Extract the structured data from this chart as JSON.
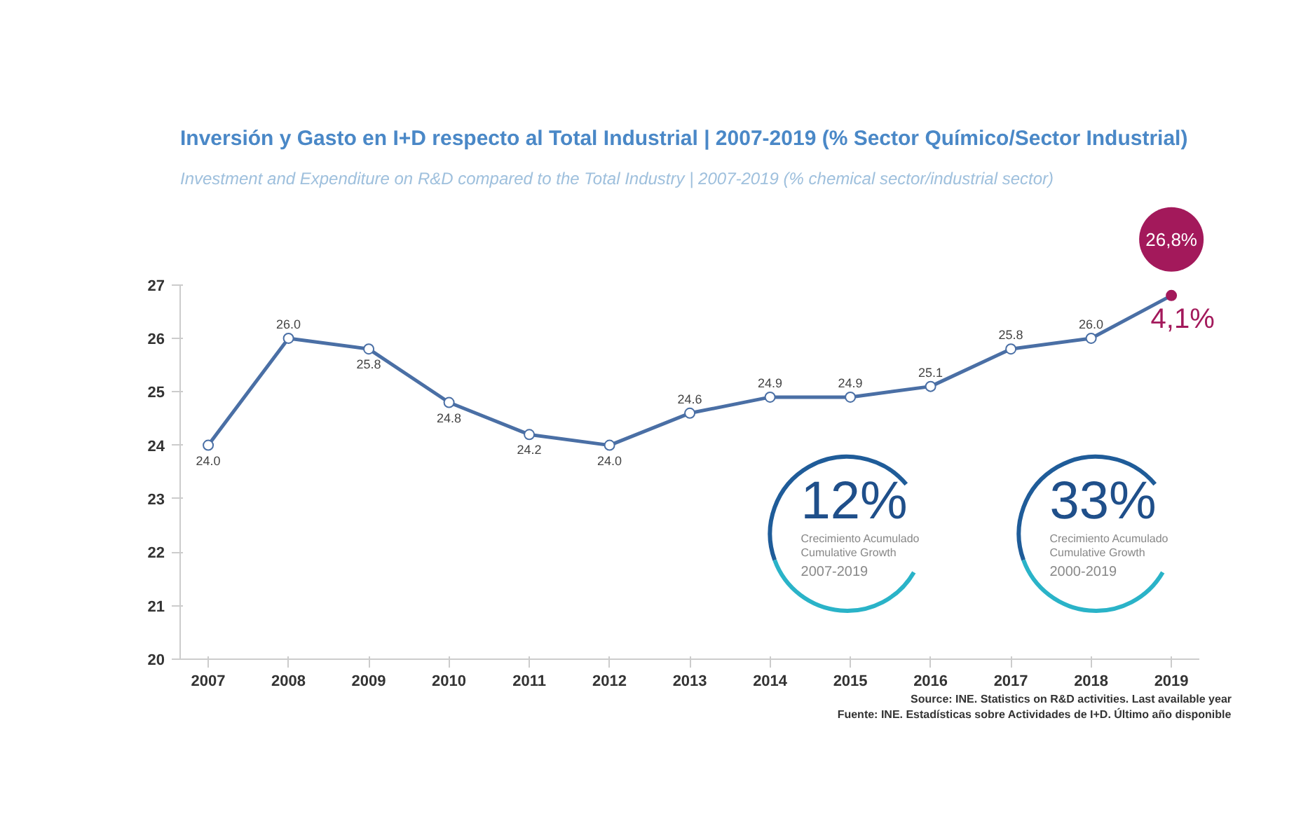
{
  "chart_data": {
    "type": "line",
    "title": "Inversión y Gasto en I+D respecto al Total Industrial | 2007-2019 (% Sector Químico/Sector Industrial)",
    "subtitle": "Investment and Expenditure on R&D compared to the Total Industry | 2007-2019 (% chemical sector/industrial sector)",
    "categories": [
      "2007",
      "2008",
      "2009",
      "2010",
      "2011",
      "2012",
      "2013",
      "2014",
      "2015",
      "2016",
      "2017",
      "2018",
      "2019"
    ],
    "series": [
      {
        "color": "#4a6fa5",
        "colors": [
          "#4a6fa5",
          "#4a6fa5",
          "#4a6fa5",
          "#4a6fa5",
          "#4a6fa5",
          "#4a6fa5",
          "#4a6fa5",
          "#4a6fa5",
          "#4a6fa5",
          "#4a6fa5",
          "#4a6fa5",
          "#4a6fa5",
          "#a3195b"
        ],
        "values": [
          24.0,
          26.0,
          25.8,
          24.8,
          24.2,
          24.0,
          24.6,
          24.9,
          24.9,
          25.1,
          25.8,
          26.0,
          26.8
        ],
        "value_labels": [
          "24.0",
          "26.0",
          "25.8",
          "24.8",
          "24.2",
          "24.0",
          "24.6",
          "24.9",
          "24.9",
          "25.1",
          "25.8",
          "26.0",
          "26,8%"
        ]
      }
    ],
    "ylim": [
      20,
      27
    ],
    "yticks": [
      20,
      21,
      22,
      23,
      24,
      25,
      26,
      27
    ],
    "grid": false,
    "marker": "circle",
    "line_style": "solid",
    "annotations": [
      "4,1%",
      "12%",
      "Crecimiento Acumulado",
      "Cumulative Growth",
      "2007-2019",
      "33%",
      "Crecimiento Acumulado",
      "Cumulative Growth",
      "2000-2019",
      "Fuente: INE. Estadísticas sobre Actividades de I+D. Último año disponible",
      "Source: INE. Statistics on R&D activities. Last available year"
    ]
  }
}
